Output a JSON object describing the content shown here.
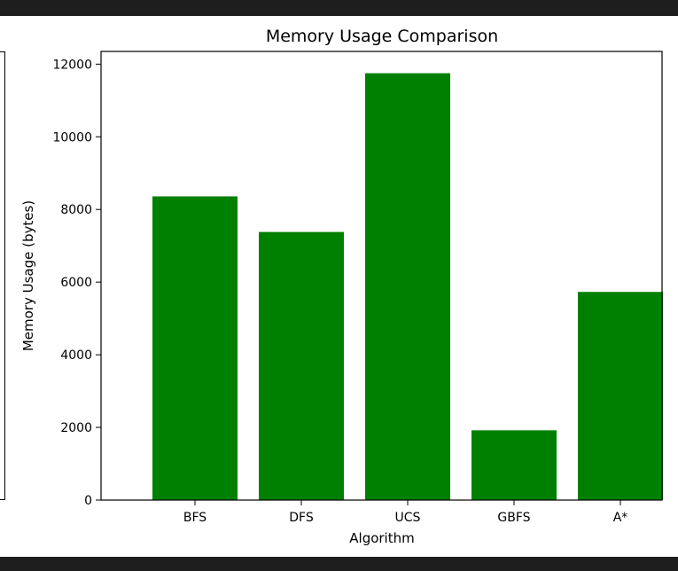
{
  "chart_data": {
    "type": "bar",
    "title": "Memory Usage Comparison",
    "xlabel": "Algorithm",
    "ylabel": "Memory Usage (bytes)",
    "categories": [
      "BFS",
      "DFS",
      "UCS",
      "GBFS",
      "A*"
    ],
    "values": [
      8360,
      7380,
      11750,
      1920,
      5730
    ],
    "ylim": [
      0,
      12350
    ],
    "yticks": [
      0,
      2000,
      4000,
      6000,
      8000,
      10000,
      12000
    ],
    "bar_color": "#008000",
    "grid": false,
    "legend": "none"
  }
}
